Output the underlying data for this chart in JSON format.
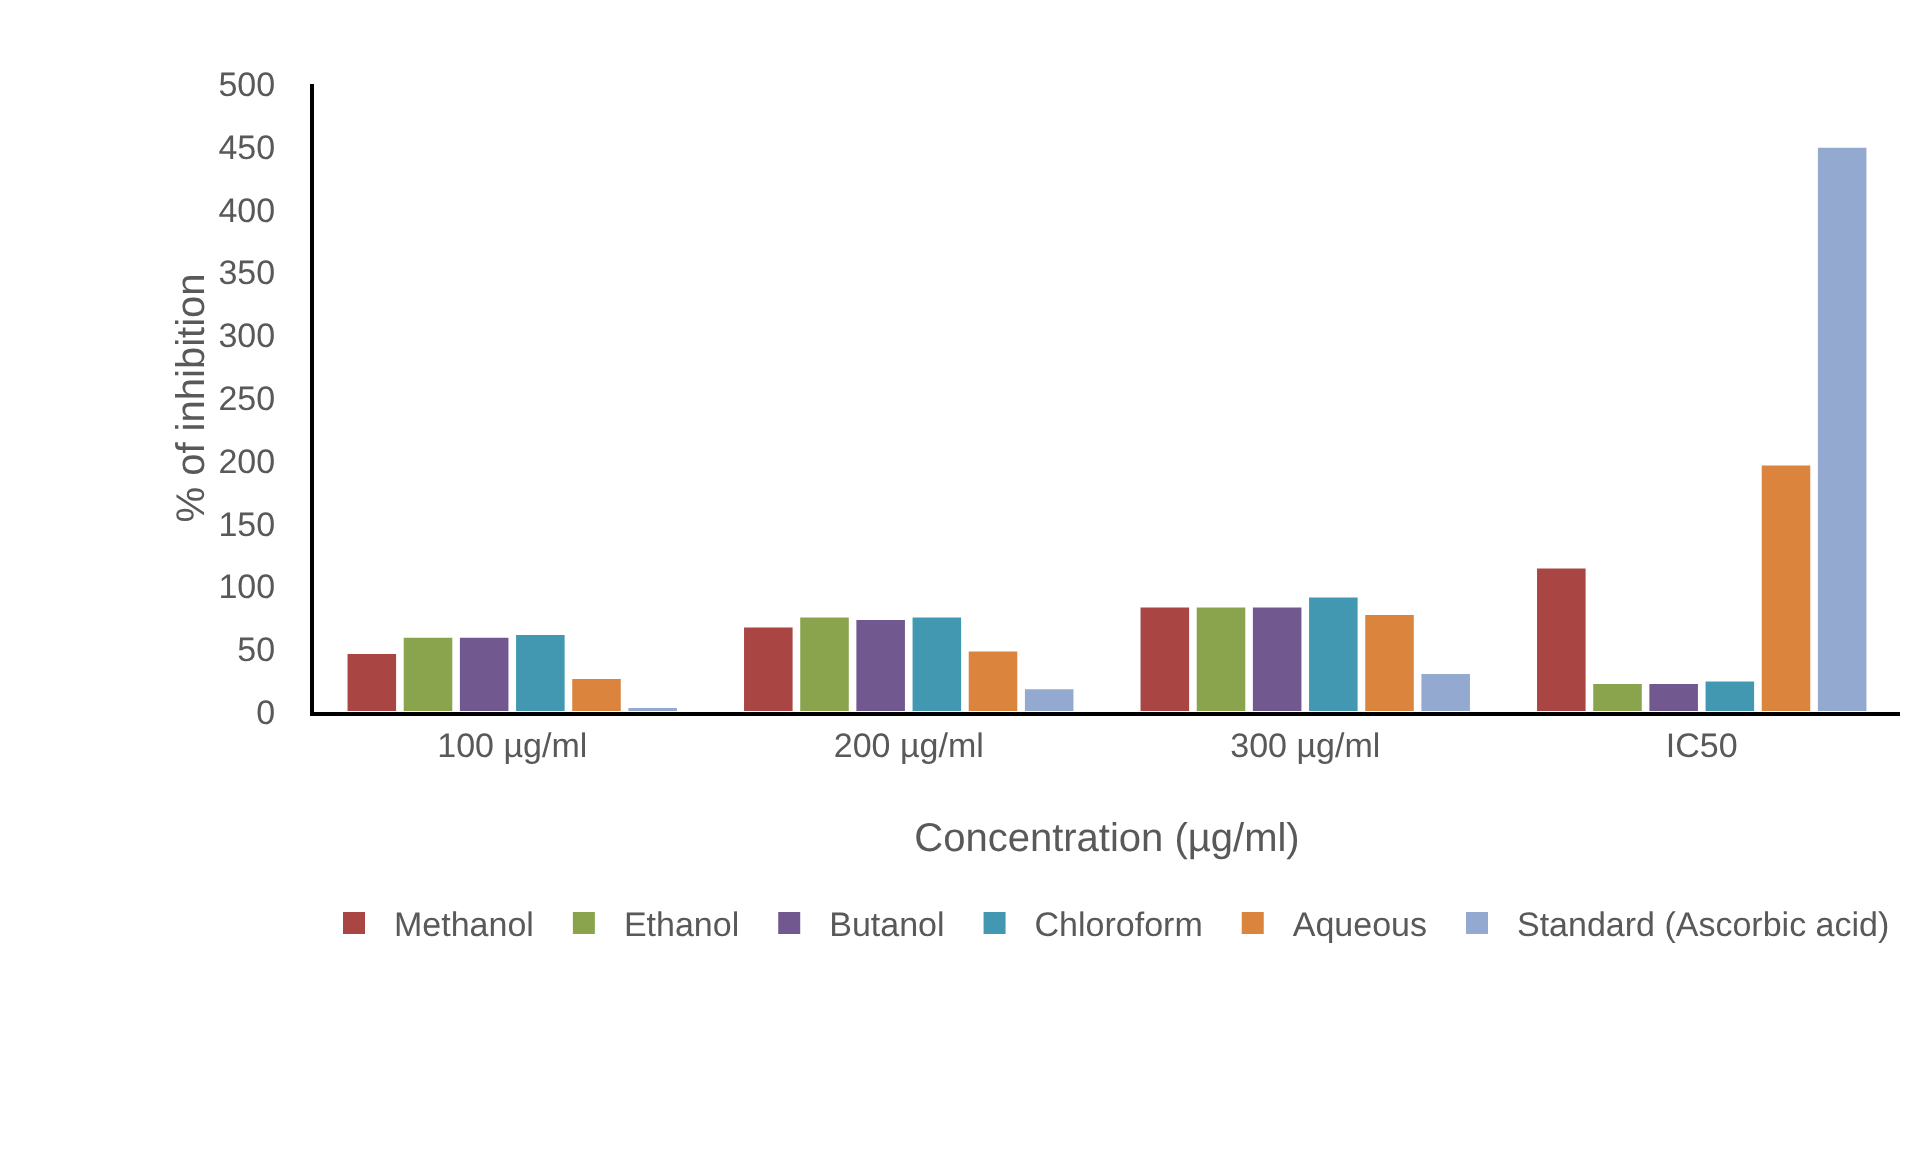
{
  "chart_data": {
    "type": "bar",
    "xlabel": "Concentration (µg/ml)",
    "ylabel": "% of inhibition",
    "categories": [
      "100 µg/ml",
      "200 µg/ml",
      "300 µg/ml",
      "IC50"
    ],
    "series": [
      {
        "name": "Methanol",
        "color": "#a94543",
        "values": [
          47,
          68,
          84,
          115
        ]
      },
      {
        "name": "Ethanol",
        "color": "#89a44c",
        "values": [
          60,
          76,
          84,
          23
        ]
      },
      {
        "name": "Butanol",
        "color": "#71588f",
        "values": [
          60,
          74,
          84,
          23
        ]
      },
      {
        "name": "Chloroform",
        "color": "#4298b1",
        "values": [
          62,
          76,
          92,
          25
        ]
      },
      {
        "name": "Aqueous",
        "color": "#db843d",
        "values": [
          27,
          49,
          78,
          197
        ]
      },
      {
        "name": "Standard (Ascorbic acid)",
        "color": "#93a9d0",
        "values": [
          4,
          19,
          31,
          450
        ]
      }
    ],
    "ylim": [
      0,
      500
    ],
    "yticks": [
      0,
      50,
      100,
      150,
      200,
      250,
      300,
      350,
      400,
      450,
      500
    ],
    "grid": false,
    "legend": "bottom"
  }
}
